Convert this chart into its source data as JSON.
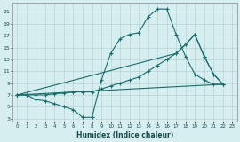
{
  "xlabel": "Humidex (Indice chaleur)",
  "bg_color": "#d6eef0",
  "grid_color": "#b0cccc",
  "line_color": "#1a6b6b",
  "xlim": [
    -0.5,
    23.5
  ],
  "ylim": [
    2.5,
    22.5
  ],
  "xticks": [
    0,
    1,
    2,
    3,
    4,
    5,
    6,
    7,
    8,
    9,
    10,
    11,
    12,
    13,
    14,
    15,
    16,
    17,
    18,
    19,
    20,
    21,
    22,
    23
  ],
  "yticks": [
    3,
    5,
    7,
    9,
    11,
    13,
    15,
    17,
    19,
    21
  ],
  "lines": [
    {
      "x": [
        0,
        1,
        2,
        3,
        4,
        5,
        6,
        7,
        8,
        9,
        10,
        11,
        12,
        13,
        14,
        15,
        16,
        17,
        18,
        19,
        20,
        21,
        22
      ],
      "y": [
        7,
        7,
        6.2,
        6,
        5.5,
        5.0,
        4.5,
        3.2,
        3.2,
        9.5,
        14,
        16.5,
        17.2,
        17.5,
        20.2,
        21.5,
        21.5,
        17.2,
        13.5,
        10.5,
        9.5,
        8.8,
        8.8
      ],
      "marker": true
    },
    {
      "x": [
        0,
        1,
        2,
        3,
        4,
        5,
        6,
        7,
        8,
        9,
        10,
        11,
        12,
        13,
        14,
        15,
        16,
        17,
        18,
        19,
        20,
        21,
        22
      ],
      "y": [
        7,
        7.0,
        7.0,
        7.0,
        7.2,
        7.3,
        7.5,
        7.5,
        7.5,
        8.0,
        8.5,
        9.0,
        9.5,
        10.0,
        11.0,
        12.0,
        13.0,
        14.0,
        15.5,
        17.2,
        13.5,
        10.5,
        8.8
      ],
      "marker": true
    },
    {
      "x": [
        0,
        22
      ],
      "y": [
        7,
        8.8
      ],
      "marker": false
    },
    {
      "x": [
        0,
        17,
        18,
        19,
        20,
        21,
        22
      ],
      "y": [
        7,
        14.0,
        15.5,
        17.2,
        13.5,
        10.5,
        8.8
      ],
      "marker": true
    }
  ]
}
